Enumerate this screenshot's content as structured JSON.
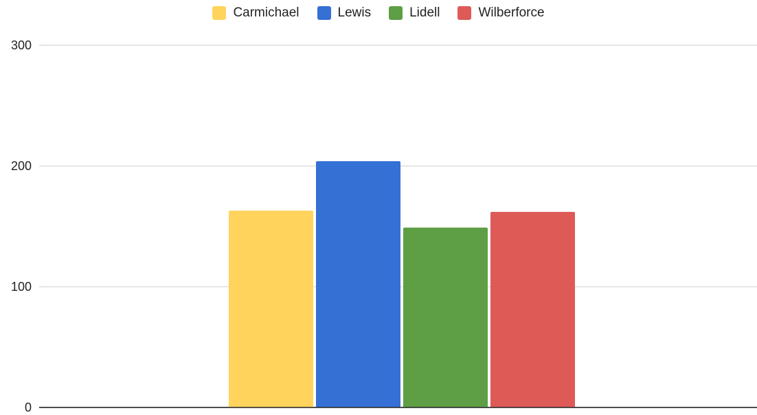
{
  "chart_data": {
    "type": "bar",
    "categories": [
      ""
    ],
    "series": [
      {
        "name": "Carmichael",
        "values": [
          163
        ],
        "color": "#FFD35C"
      },
      {
        "name": "Lewis",
        "values": [
          204
        ],
        "color": "#3570D4"
      },
      {
        "name": "Lidell",
        "values": [
          149
        ],
        "color": "#5E9E45"
      },
      {
        "name": "Wilberforce",
        "values": [
          162
        ],
        "color": "#DD5A57"
      }
    ],
    "title": "",
    "xlabel": "",
    "ylabel": "",
    "ylim": [
      0,
      300
    ],
    "yticks": [
      "0",
      "100",
      "200",
      "300"
    ],
    "grid": true,
    "legend_position": "top"
  }
}
